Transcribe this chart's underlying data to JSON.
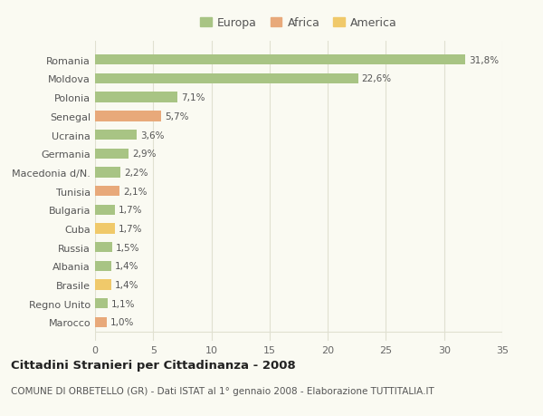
{
  "countries": [
    "Romania",
    "Moldova",
    "Polonia",
    "Senegal",
    "Ucraina",
    "Germania",
    "Macedonia d/N.",
    "Tunisia",
    "Bulgaria",
    "Cuba",
    "Russia",
    "Albania",
    "Brasile",
    "Regno Unito",
    "Marocco"
  ],
  "values": [
    31.8,
    22.6,
    7.1,
    5.7,
    3.6,
    2.9,
    2.2,
    2.1,
    1.7,
    1.7,
    1.5,
    1.4,
    1.4,
    1.1,
    1.0
  ],
  "labels": [
    "31,8%",
    "22,6%",
    "7,1%",
    "5,7%",
    "3,6%",
    "2,9%",
    "2,2%",
    "2,1%",
    "1,7%",
    "1,7%",
    "1,5%",
    "1,4%",
    "1,4%",
    "1,1%",
    "1,0%"
  ],
  "continents": [
    "Europa",
    "Europa",
    "Europa",
    "Africa",
    "Europa",
    "Europa",
    "Europa",
    "Africa",
    "Europa",
    "America",
    "Europa",
    "Europa",
    "America",
    "Europa",
    "Africa"
  ],
  "colors": {
    "Europa": "#a8c484",
    "Africa": "#e8a97a",
    "America": "#f0c96a"
  },
  "xlim": [
    0,
    35
  ],
  "xticks": [
    0,
    5,
    10,
    15,
    20,
    25,
    30,
    35
  ],
  "title": "Cittadini Stranieri per Cittadinanza - 2008",
  "subtitle": "COMUNE DI ORBETELLO (GR) - Dati ISTAT al 1° gennaio 2008 - Elaborazione TUTTITALIA.IT",
  "background_color": "#fafaf2",
  "grid_color": "#e0e0d0",
  "bar_height": 0.55
}
